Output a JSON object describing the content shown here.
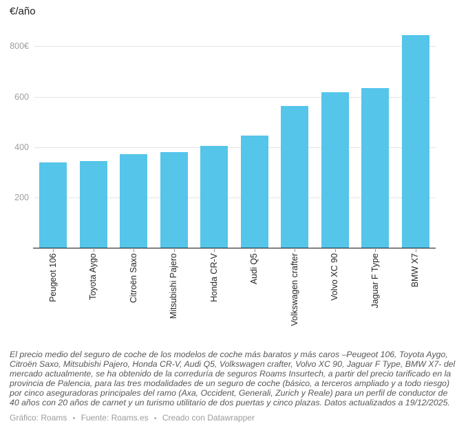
{
  "header": {
    "unit_label": "€/año"
  },
  "chart_data": {
    "type": "bar",
    "title": "€/año",
    "xlabel": "",
    "ylabel": "€/año",
    "categories": [
      "Peugeot 106",
      "Toyota Aygo",
      "Citroën Saxo",
      "Mitsubishi Pajero",
      "Honda CR-V",
      "Audi Q5",
      "Volkswagen crafter",
      "Volvo XC 90",
      "Jaguar F Type",
      "BMW X7"
    ],
    "values": [
      338,
      344,
      373,
      379,
      405,
      445,
      564,
      617,
      634,
      844
    ],
    "ylim": [
      0,
      864
    ],
    "yticks": [
      {
        "value": 200,
        "label": "200"
      },
      {
        "value": 400,
        "label": "400"
      },
      {
        "value": 600,
        "label": "600"
      },
      {
        "value": 800,
        "label": "800€"
      }
    ],
    "grid": true,
    "legend": "none",
    "bar_color": "#55c5e9"
  },
  "notes": {
    "text": "El precio medio del seguro de coche de los modelos de coche más baratos y más caros –Peugeot 106, Toyota Aygo, Citroën Saxo, Mitsubishi Pajero, Honda CR-V, Audi Q5, Volkswagen crafter, Volvo XC 90, Jaguar F Type, BMW X7- del mercado actualmente, se ha obtenido de la correduría de seguros Roams Insurtech, a partir del precio tarificado en la provincia de Palencia, para las tres modalidades de un seguro de coche (básico, a terceros ampliado y a todo riesgo) por cinco aseguradoras principales del ramo (Axa, Occident, Generali, Zurich y Reale) para un perfil de conductor de 40 años con 20 años de carnet y un turismo utilitario de dos puertas y cinco plazas. Datos actualizados a 19/12/2025."
  },
  "credit": {
    "graphic_label": "Gráfico:",
    "graphic_link": "Roams",
    "separator": "•",
    "source_label": "Fuente:",
    "source_link": "Roams.es",
    "created_label": "Creado con",
    "created_link": "Datawrapper"
  }
}
